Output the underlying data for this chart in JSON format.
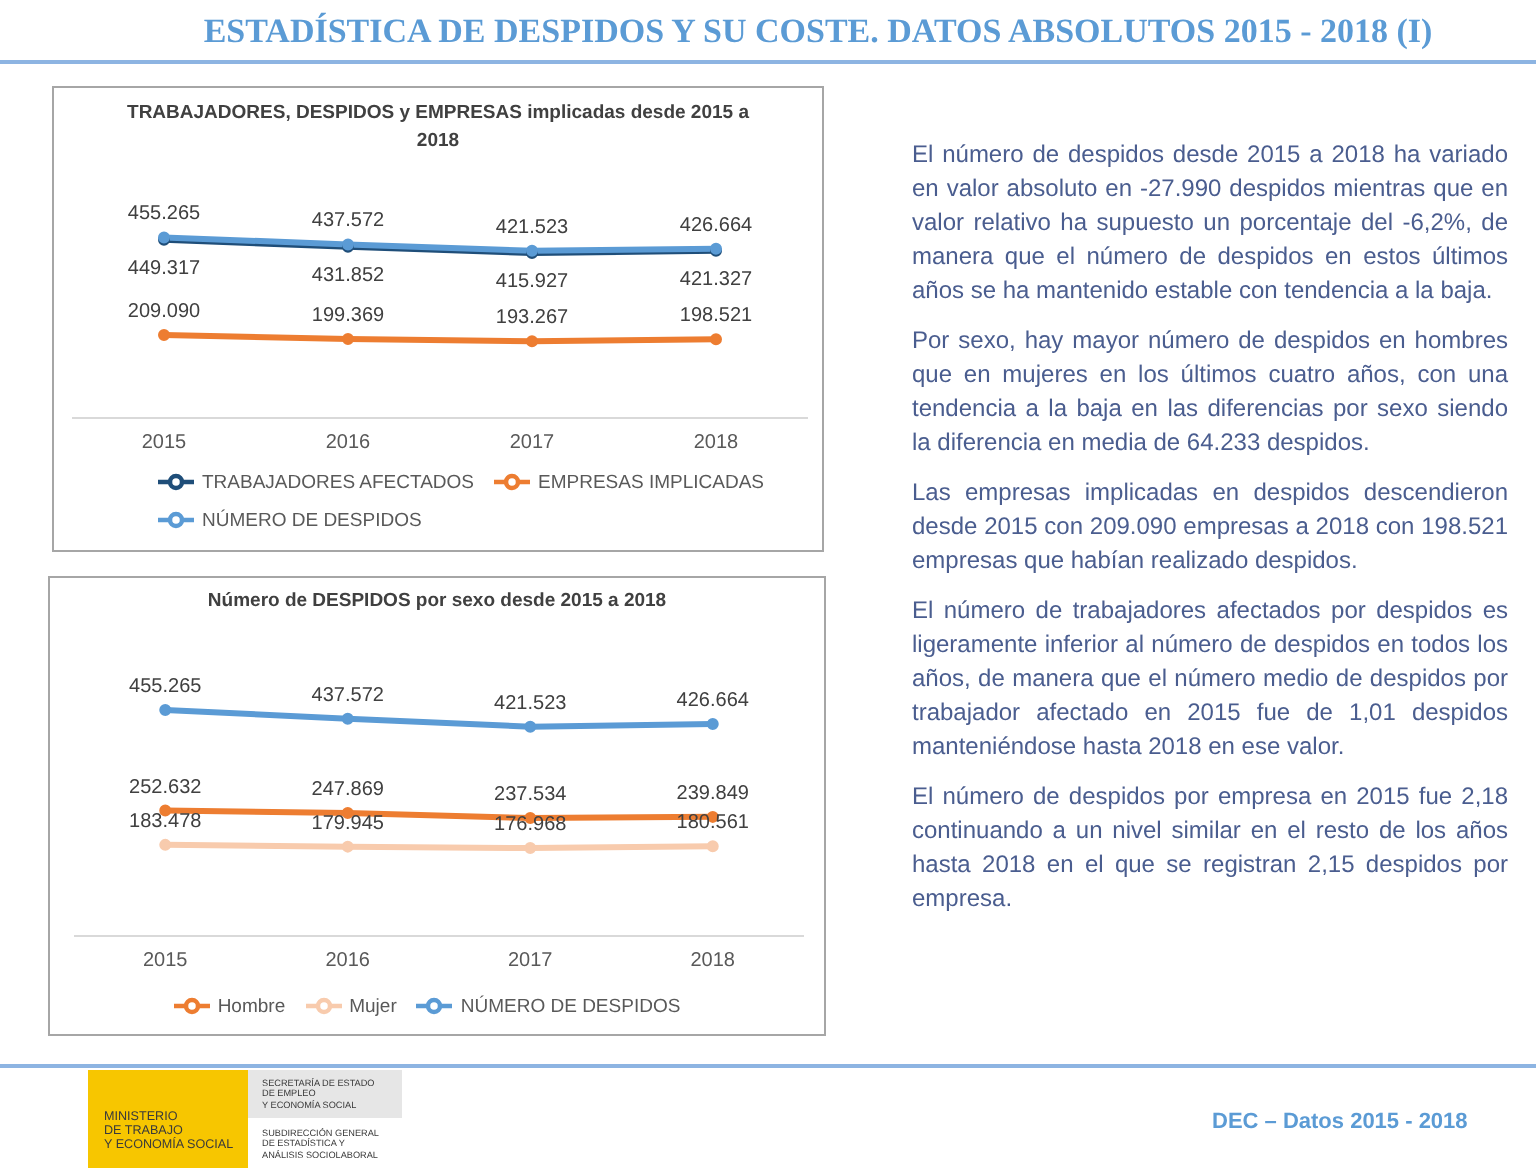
{
  "chart_data": [
    {
      "type": "other",
      "title": "ESTADÍSTICA DE DESPIDOS Y SU COSTE. DATOS ABSOLUTOS 2015 - 2018 (I)"
    },
    {
      "type": "line",
      "title": "TRABAJADORES, DESPIDOS y EMPRESAS implicadas desde 2015 a 2018",
      "categories": [
        "2015",
        "2016",
        "2017",
        "2018"
      ],
      "series": [
        {
          "name": "TRABAJADORES AFECTADOS",
          "color": "#1f4e79",
          "values": [
            449317,
            431852,
            415927,
            421327
          ],
          "value_labels": [
            "449.317",
            "431.852",
            "415.927",
            "421.327"
          ]
        },
        {
          "name": "EMPRESAS IMPLICADAS",
          "color": "#ed7d31",
          "values": [
            209090,
            199369,
            193267,
            198521
          ],
          "value_labels": [
            "209.090",
            "199.369",
            "193.267",
            "198.521"
          ]
        },
        {
          "name": "NÚMERO DE DESPIDOS",
          "color": "#5b9bd5",
          "values": [
            455265,
            437572,
            421523,
            426664
          ],
          "value_labels": [
            "455.265",
            "437.572",
            "421.523",
            "426.664"
          ]
        }
      ],
      "tick_labels": "x",
      "legend": "bottom",
      "marker": "circle"
    },
    {
      "type": "line",
      "title": "Número de DESPIDOS por sexo desde 2015 a 2018",
      "categories": [
        "2015",
        "2016",
        "2017",
        "2018"
      ],
      "series": [
        {
          "name": "Hombre",
          "color": "#ed7d31",
          "values": [
            252632,
            247869,
            237534,
            239849
          ],
          "value_labels": [
            "252.632",
            "247.869",
            "237.534",
            "239.849"
          ]
        },
        {
          "name": "Mujer",
          "color": "#f8cbad",
          "values": [
            183478,
            179945,
            176968,
            180561
          ],
          "value_labels": [
            "183.478",
            "179.945",
            "176.968",
            "180.561"
          ]
        },
        {
          "name": "NÚMERO DE DESPIDOS",
          "color": "#5b9bd5",
          "values": [
            455265,
            437572,
            421523,
            426664
          ],
          "value_labels": [
            "455.265",
            "437.572",
            "421.523",
            "426.664"
          ]
        }
      ],
      "tick_labels": "x",
      "legend": "bottom",
      "marker": "circle"
    },
    {
      "type": "other",
      "annotations": [
        "El número de despidos desde 2015 a 2018 ha variado en valor absoluto en -27.990 despidos mientras que en valor relativo ha supuesto un porcentaje del -6,2%, de manera que el número de despidos en estos últimos años se ha mantenido estable con tendencia a la baja.",
        "Por sexo, hay mayor número de despidos en hombres que en mujeres en los últimos cuatro años, con una tendencia a la baja en las diferencias por sexo siendo la diferencia en media de 64.233 despidos.",
        "Las empresas implicadas en despidos descendieron desde 2015 con 209.090 empresas a 2018 con 198.521 empresas que habían realizado despidos.",
        "El número de trabajadores afectados por despidos es ligeramente inferior al número de despidos en todos los años, de manera que el número medio de despidos por trabajador afectado en 2015 fue de 1,01 despidos manteniéndose hasta 2018 en ese valor.",
        "El número de despidos por empresa en 2015 fue 2,18 continuando a un nivel similar en el resto de los años hasta 2018 en el que se registran 2,15 despidos por empresa."
      ]
    },
    {
      "type": "other",
      "annotations": [
        "MINISTERIO\nDE TRABAJO\nY ECONOMÍA SOCIAL",
        "SECRETARÍA DE ESTADO\nDE EMPLEO\nY ECONOMÍA SOCIAL",
        "SUBDIRECCIÓN GENERAL\nDE ESTADÍSTICA Y\nANÁLISIS SOCIOLABORAL",
        "DEC – Datos 2015 - 2018"
      ]
    }
  ]
}
